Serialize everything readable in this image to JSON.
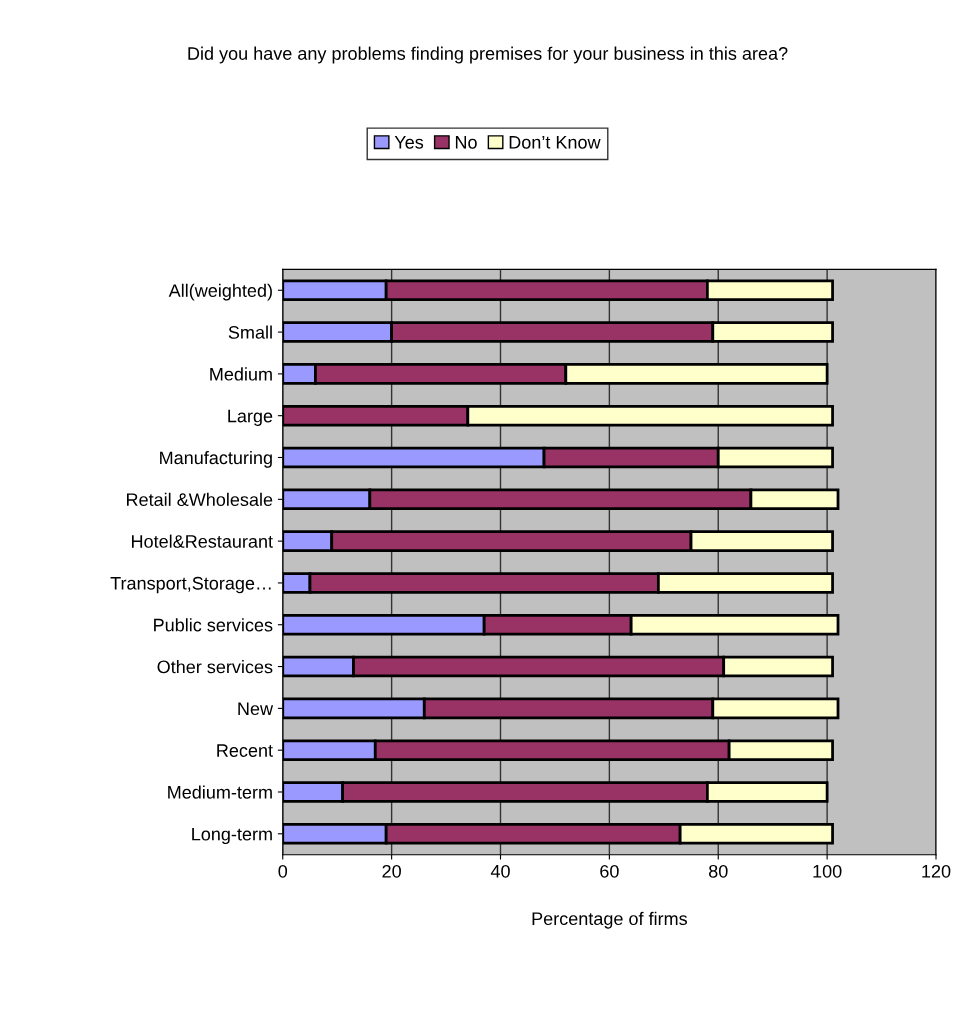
{
  "chart_data": {
    "type": "bar",
    "orientation": "horizontal",
    "stacked": true,
    "title": "Did you have any problems finding premises for your business in this area?",
    "xlabel": "Percentage of firms",
    "categories": [
      "All(weighted)",
      "Small",
      "Medium",
      "Large",
      "Manufacturing",
      "Retail &Wholesale",
      "Hotel&Restaurant",
      "Transport,Storage…",
      "Public services",
      "Other services",
      "New",
      "Recent",
      "Medium-term",
      "Long-term"
    ],
    "series": [
      {
        "name": "Yes",
        "color": "#9999ff",
        "values": [
          19,
          20,
          6,
          0,
          48,
          16,
          9,
          5,
          37,
          13,
          26,
          17,
          11,
          19
        ]
      },
      {
        "name": "No",
        "color": "#993366",
        "values": [
          59,
          59,
          46,
          34,
          32,
          70,
          66,
          64,
          27,
          68,
          53,
          65,
          67,
          54
        ]
      },
      {
        "name": "Don’t Know",
        "color": "#ffffcc",
        "values": [
          23,
          22,
          48,
          67,
          21,
          16,
          26,
          32,
          38,
          20,
          23,
          19,
          22,
          28
        ]
      }
    ],
    "xlim": [
      0,
      120
    ],
    "xticks": [
      0,
      20,
      40,
      60,
      80,
      100,
      120
    ],
    "grid": "x",
    "legend": "top"
  }
}
